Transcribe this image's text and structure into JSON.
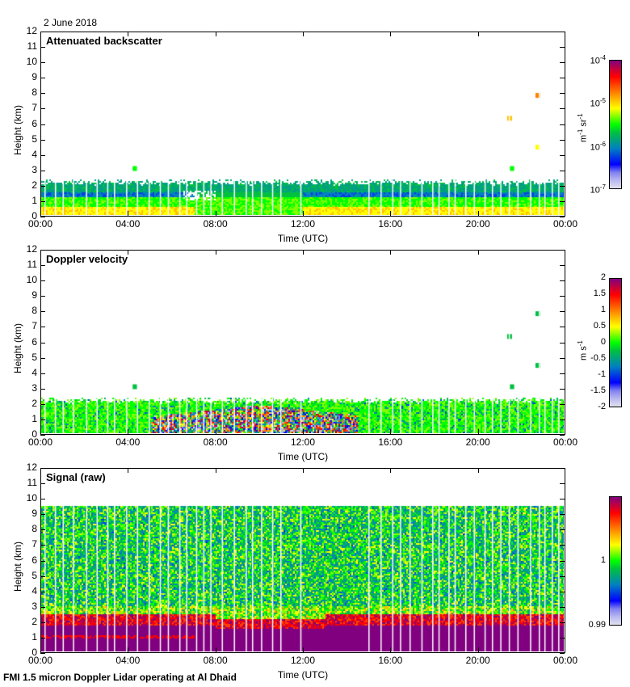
{
  "header": {
    "date": "2 June 2018"
  },
  "footer": {
    "caption": "FMI 1.5 micron Doppler Lidar operating at Al Dhaid"
  },
  "colormap": [
    "#e0e0ef",
    "#b8b8f0",
    "#8080f0",
    "#0000ff",
    "#0040e0",
    "#0080c0",
    "#00a080",
    "#00c040",
    "#00ff00",
    "#80ff00",
    "#ffff00",
    "#ffc000",
    "#ff8000",
    "#ff4000",
    "#ff0000",
    "#c00040",
    "#800080"
  ],
  "chart_data": [
    {
      "type": "heatmap",
      "title": "Attenuated backscatter",
      "xlabel": "Time (UTC)",
      "ylabel": "Height (km)",
      "x_ticks": [
        "00:00",
        "04:00",
        "08:00",
        "12:00",
        "16:00",
        "20:00",
        "00:00"
      ],
      "xlim_hours": [
        0,
        24
      ],
      "y_ticks": [
        "0",
        "1",
        "2",
        "3",
        "4",
        "5",
        "6",
        "7",
        "8",
        "9",
        "10",
        "11",
        "12"
      ],
      "ylim": [
        0,
        12
      ],
      "colorbar": {
        "scale": "log",
        "range": [
          1e-07,
          0.0001
        ],
        "ticks": [
          {
            "base": "10",
            "exp": "-7"
          },
          {
            "base": "10",
            "exp": "-6"
          },
          {
            "base": "10",
            "exp": "-5"
          },
          {
            "base": "10",
            "exp": "-4"
          }
        ],
        "unit_parts": [
          {
            "base": "m",
            "exp": "-1"
          },
          {
            "base": " sr",
            "exp": "-1"
          }
        ]
      },
      "features": {
        "boundary_layer_top_km": 2.2,
        "aerosol_layer_base_km": 0.6,
        "isolated_returns_km": [
          3.0,
          4.4,
          6.3,
          7.8
        ]
      }
    },
    {
      "type": "heatmap",
      "title": "Doppler velocity",
      "xlabel": "Time (UTC)",
      "ylabel": "Height (km)",
      "x_ticks": [
        "00:00",
        "04:00",
        "08:00",
        "12:00",
        "16:00",
        "20:00",
        "00:00"
      ],
      "xlim_hours": [
        0,
        24
      ],
      "y_ticks": [
        "0",
        "1",
        "2",
        "3",
        "4",
        "5",
        "6",
        "7",
        "8",
        "9",
        "10",
        "11",
        "12"
      ],
      "ylim": [
        0,
        12
      ],
      "colorbar": {
        "scale": "linear",
        "range": [
          -2,
          2
        ],
        "ticks": [
          "-2",
          "-1.5",
          "-1",
          "-0.5",
          "0",
          "0.5",
          "1",
          "1.5",
          "2"
        ],
        "unit_parts": [
          {
            "base": "m s",
            "exp": "-1"
          }
        ]
      },
      "features": {
        "convective_period_hours": [
          5,
          14.5
        ],
        "boundary_layer_top_km": 2.2
      }
    },
    {
      "type": "heatmap",
      "title": "Signal (raw)",
      "xlabel": "Time (UTC)",
      "ylabel": "Height (km)",
      "x_ticks": [
        "00:00",
        "04:00",
        "08:00",
        "12:00",
        "16:00",
        "20:00",
        "00:00"
      ],
      "xlim_hours": [
        0,
        24
      ],
      "y_ticks": [
        "0",
        "1",
        "2",
        "3",
        "4",
        "5",
        "6",
        "7",
        "8",
        "9",
        "10",
        "11",
        "12"
      ],
      "ylim": [
        0,
        12
      ],
      "colorbar": {
        "scale": "linear",
        "range": [
          0.99,
          1.01
        ],
        "ticks": [
          "0.99",
          "1"
        ]
      },
      "features": {
        "max_range_km": 9.6,
        "saturated_layer_top_km": 1.8
      }
    }
  ]
}
